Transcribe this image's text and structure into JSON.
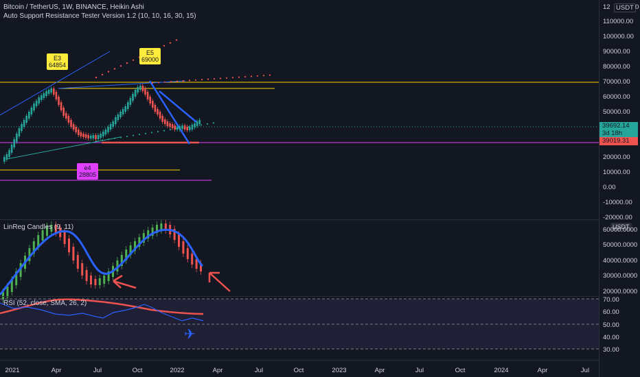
{
  "header": {
    "title": "Bitcoin / TetherUS, 1W, BINANCE, Heikin Ashi",
    "indicator": "Auto Support Resistance Tester Version 1.2 (10, 10, 16, 30, 15)",
    "currency_button": "USDT",
    "scale_prefix": "12",
    "settings_value": "0"
  },
  "main_axis": [
    "110000.00",
    "100000.00",
    "90000.00",
    "80000.00",
    "70000.00",
    "60000.00",
    "50000.00",
    "30000.00",
    "20000.00",
    "10000.00",
    "0.00",
    "-10000.00",
    "-20000.00"
  ],
  "price_tags": {
    "current": "39692.14",
    "countdown": "3d 18h",
    "support": "39019.31"
  },
  "callouts": [
    {
      "line1": "E3",
      "line2": "64854"
    },
    {
      "line1": "E5",
      "line2": "69000"
    },
    {
      "line1": "e4",
      "line2": "28805"
    }
  ],
  "linreg": {
    "title": "LinReg Candles (9, 11)",
    "unit": "USDT",
    "axis": [
      "60000.0000",
      "50000.0000",
      "40000.0000",
      "30000.0000",
      "20000.0000"
    ]
  },
  "rsi": {
    "title": "RSI (52, close, SMA, 26, 2)",
    "axis": [
      "70.00",
      "60.00",
      "50.00",
      "40.00",
      "30.00"
    ]
  },
  "time_axis": [
    "2021",
    "Apr",
    "Jul",
    "Oct",
    "2022",
    "Apr",
    "Jul",
    "Oct",
    "2023",
    "Apr",
    "Jul",
    "Oct",
    "2024",
    "Apr",
    "Jul"
  ],
  "colors": {
    "background": "#131722",
    "up": "#26a69a",
    "down": "#ef5350",
    "blue": "#2962ff",
    "yellow": "#ffd600",
    "magenta": "#e040fb",
    "linreg_up": "#4caf50",
    "callout_yellow": "#ffeb3b",
    "callout_pink": "#e040fb"
  },
  "icons": [
    "airplane-icon"
  ]
}
